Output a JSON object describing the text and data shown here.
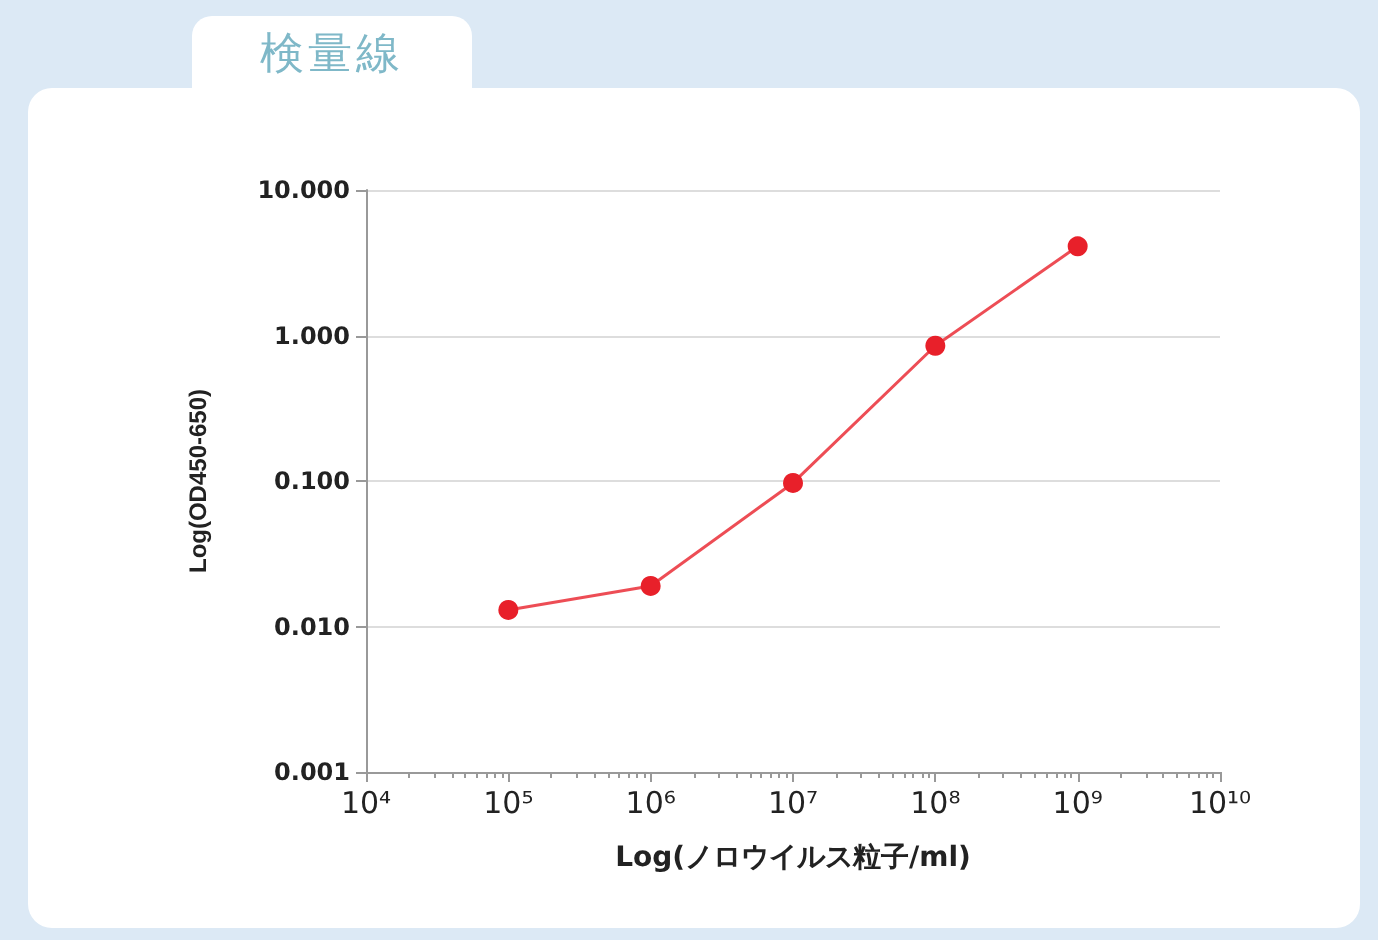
{
  "chart_data": {
    "type": "line",
    "title": "検量線",
    "xlabel": "Log(ノロウイルス粒子/ml)",
    "ylabel": "Log(OD450-650)",
    "x": [
      100000,
      1000000,
      10000000,
      100000000,
      1000000000
    ],
    "series": [
      {
        "color": "#e8202a",
        "values": [
          0.013,
          0.019,
          0.097,
          0.85,
          4.1
        ]
      }
    ],
    "log": "xy",
    "xlim": [
      10000,
      10000000000
    ],
    "ylim": [
      0.001,
      10
    ],
    "xticks": [
      {
        "value": 10000,
        "label": "10⁴"
      },
      {
        "value": 100000,
        "label": "10⁵"
      },
      {
        "value": 1000000,
        "label": "10⁶"
      },
      {
        "value": 10000000,
        "label": "10⁷"
      },
      {
        "value": 100000000,
        "label": "10⁸"
      },
      {
        "value": 1000000000,
        "label": "10⁹"
      },
      {
        "value": 10000000000,
        "label": "10¹⁰"
      }
    ],
    "yticks": [
      {
        "value": 0.001,
        "label": "0.001"
      },
      {
        "value": 0.01,
        "label": "0.010"
      },
      {
        "value": 0.1,
        "label": "0.100"
      },
      {
        "value": 1,
        "label": "1.000"
      },
      {
        "value": 10,
        "label": "10.000"
      }
    ],
    "grid": "y",
    "marker": "circle",
    "line_style": "solid"
  }
}
